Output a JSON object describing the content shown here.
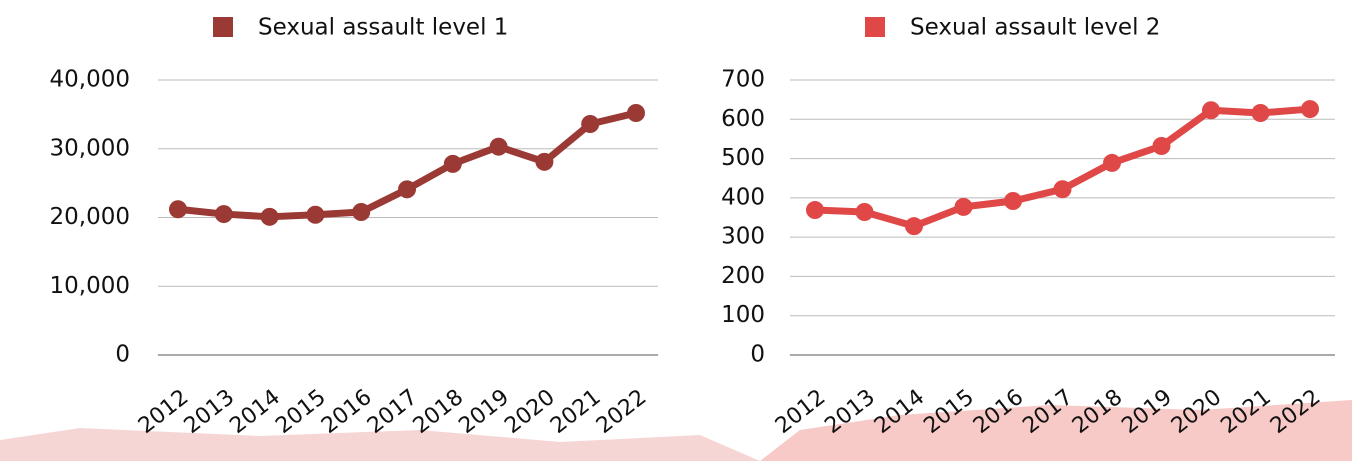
{
  "chart_data": [
    {
      "type": "line",
      "categories": [
        "2012",
        "2013",
        "2014",
        "2015",
        "2016",
        "2017",
        "2018",
        "2019",
        "2020",
        "2021",
        "2022"
      ],
      "series": [
        {
          "name": "Sexual assault level 1",
          "color": "#9b3a35",
          "values": [
            21200,
            20500,
            20100,
            20400,
            20800,
            24100,
            27800,
            30300,
            28100,
            33600,
            35200
          ]
        }
      ],
      "ylim": [
        0,
        40000
      ],
      "yticks": [
        0,
        {
          "value": 10000,
          "label": "10,000"
        },
        {
          "value": 20000,
          "label": "20,000"
        },
        {
          "value": 30000,
          "label": "30,000"
        },
        {
          "value": 40000,
          "label": "40,000"
        }
      ],
      "grid": true
    },
    {
      "type": "line",
      "categories": [
        "2012",
        "2013",
        "2014",
        "2015",
        "2016",
        "2017",
        "2018",
        "2019",
        "2020",
        "2021",
        "2022"
      ],
      "series": [
        {
          "name": "Sexual assault level 2",
          "color": "#e04848",
          "values": [
            369,
            364,
            328,
            377,
            392,
            422,
            489,
            532,
            623,
            616,
            626
          ]
        }
      ],
      "ylim": [
        0,
        700
      ],
      "yticks": [
        0,
        100,
        200,
        300,
        400,
        500,
        600,
        700
      ],
      "grid": true
    }
  ]
}
